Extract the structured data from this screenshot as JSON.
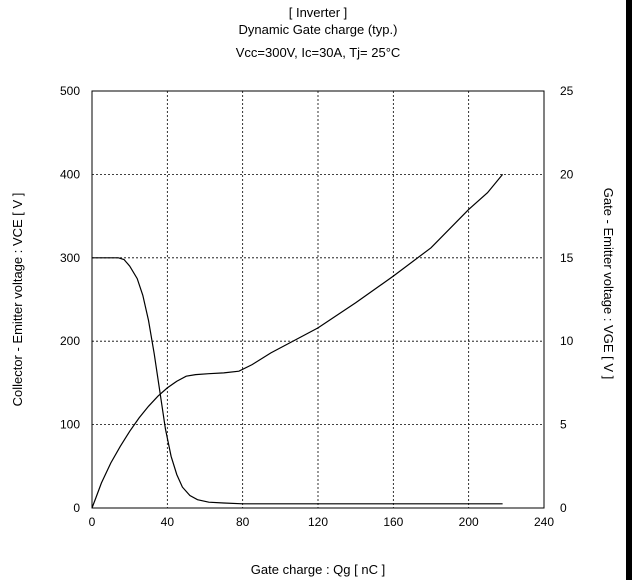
{
  "chart_data": {
    "type": "line",
    "title": "[ Inverter ]",
    "subtitle": "Dynamic Gate charge  (typ.)",
    "conditions": "Vcc=300V, Ic=30A, Tj= 25°C",
    "xlabel": "Gate charge  :  Qg  [ nC ]",
    "ylabel_left": "Collector - Emitter voltage  :  VCE  [ V ]",
    "ylabel_right": "Gate - Emitter voltage  :  VGE  [ V ]",
    "xlim": [
      0,
      240
    ],
    "ylim_left": [
      0,
      500
    ],
    "ylim_right": [
      0,
      25
    ],
    "x_ticks": [
      0,
      40,
      80,
      120,
      160,
      200,
      240
    ],
    "y_ticks_left": [
      0,
      100,
      200,
      300,
      400,
      500
    ],
    "y_ticks_right": [
      0,
      5,
      10,
      15,
      20,
      25
    ],
    "grid": true,
    "series": [
      {
        "axis": "left",
        "points": [
          [
            0,
            300
          ],
          [
            14,
            300
          ],
          [
            17,
            298
          ],
          [
            20,
            290
          ],
          [
            24,
            275
          ],
          [
            27,
            255
          ],
          [
            30,
            225
          ],
          [
            33,
            185
          ],
          [
            36,
            140
          ],
          [
            39,
            95
          ],
          [
            42,
            62
          ],
          [
            45,
            40
          ],
          [
            48,
            25
          ],
          [
            52,
            15
          ],
          [
            56,
            10
          ],
          [
            62,
            7
          ],
          [
            70,
            6
          ],
          [
            80,
            5
          ],
          [
            120,
            5
          ],
          [
            160,
            5
          ],
          [
            200,
            5
          ],
          [
            218,
            5
          ]
        ]
      },
      {
        "axis": "right",
        "points": [
          [
            0,
            0
          ],
          [
            2,
            0.6
          ],
          [
            5,
            1.5
          ],
          [
            10,
            2.7
          ],
          [
            15,
            3.7
          ],
          [
            20,
            4.6
          ],
          [
            25,
            5.4
          ],
          [
            30,
            6.1
          ],
          [
            35,
            6.7
          ],
          [
            40,
            7.2
          ],
          [
            45,
            7.6
          ],
          [
            50,
            7.9
          ],
          [
            55,
            8.0
          ],
          [
            62,
            8.05
          ],
          [
            70,
            8.1
          ],
          [
            78,
            8.2
          ],
          [
            85,
            8.6
          ],
          [
            95,
            9.3
          ],
          [
            110,
            10.2
          ],
          [
            120,
            10.8
          ],
          [
            140,
            12.3
          ],
          [
            160,
            13.9
          ],
          [
            180,
            15.6
          ],
          [
            200,
            17.9
          ],
          [
            210,
            18.9
          ],
          [
            218,
            20.0
          ]
        ]
      }
    ]
  }
}
